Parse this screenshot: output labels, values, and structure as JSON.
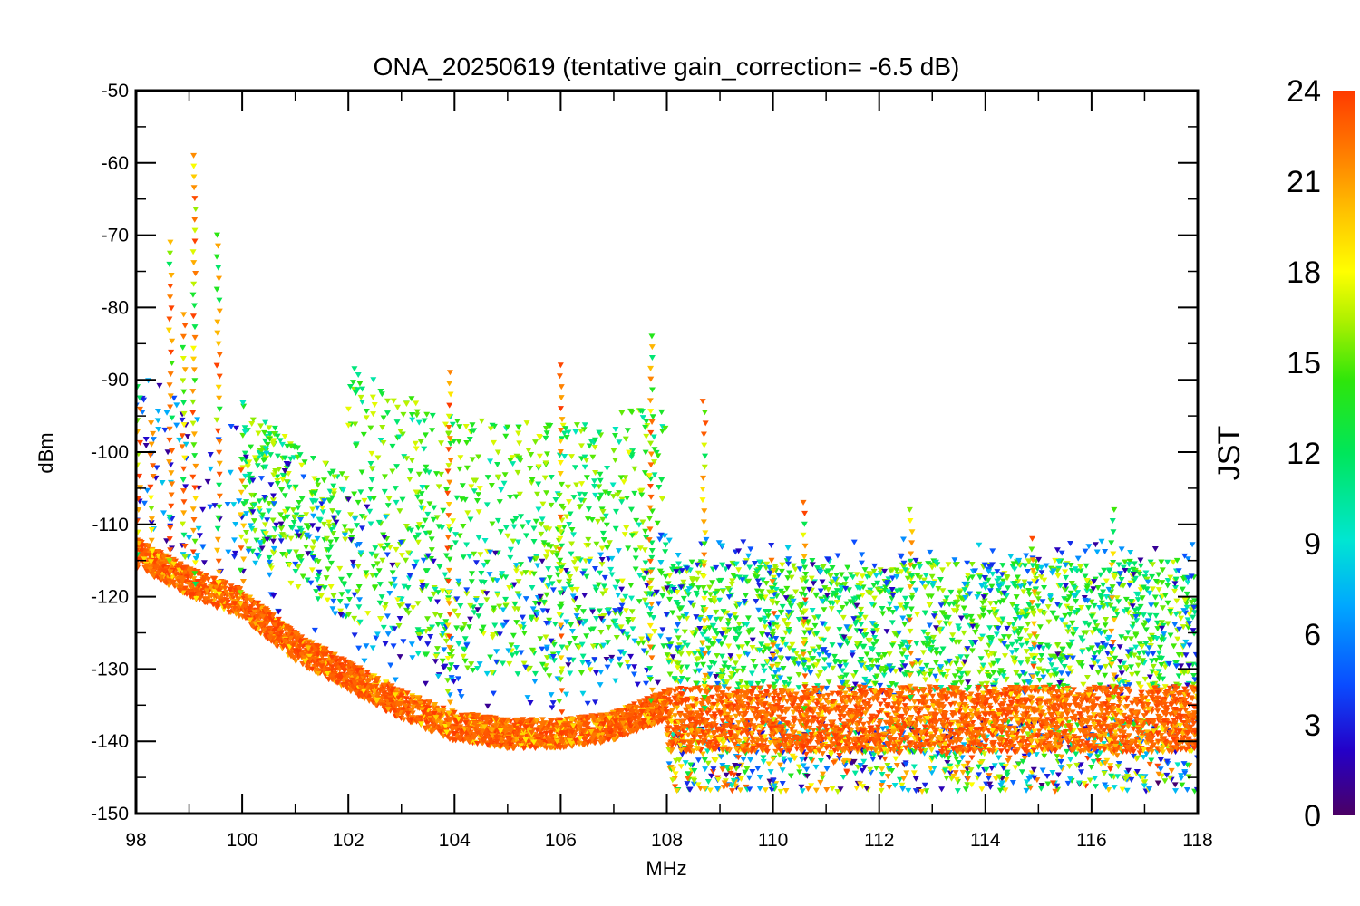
{
  "chart_data": {
    "type": "scatter",
    "title": "ONA_20250619 (tentative gain_correction= -6.5 dB)",
    "xlabel": "MHz",
    "ylabel": "dBm",
    "xlim": [
      98,
      118
    ],
    "ylim": [
      -150,
      -50
    ],
    "xticks": [
      98,
      100,
      102,
      104,
      106,
      108,
      110,
      112,
      114,
      116,
      118
    ],
    "yticks": [
      -50,
      -60,
      -70,
      -80,
      -90,
      -100,
      -110,
      -120,
      -130,
      -140,
      -150
    ],
    "marker": "downward-triangle",
    "grid": false,
    "colorbar": {
      "label": "JST",
      "range": [
        0,
        24
      ],
      "ticks": [
        24,
        21,
        18,
        15,
        12,
        9,
        6,
        3,
        0
      ],
      "colormap": "rainbow",
      "stops": [
        "#4b0064",
        "#2400c8",
        "#0a4cff",
        "#00a8ff",
        "#00e6d2",
        "#00e65a",
        "#2ee60a",
        "#aaf000",
        "#ffff00",
        "#ffc400",
        "#ff8000",
        "#ff3a00"
      ]
    },
    "noise_floor": [
      {
        "x": 98.0,
        "y": -114
      },
      {
        "x": 99.0,
        "y": -118
      },
      {
        "x": 100.0,
        "y": -121
      },
      {
        "x": 101.0,
        "y": -127
      },
      {
        "x": 102.0,
        "y": -131
      },
      {
        "x": 103.0,
        "y": -135
      },
      {
        "x": 104.0,
        "y": -138
      },
      {
        "x": 105.0,
        "y": -139
      },
      {
        "x": 106.0,
        "y": -139
      },
      {
        "x": 107.0,
        "y": -138
      },
      {
        "x": 108.0,
        "y": -135
      },
      {
        "x": 108.01,
        "y": -137
      },
      {
        "x": 118.0,
        "y": -137
      }
    ],
    "peaks": [
      {
        "x": 98.05,
        "y": -91
      },
      {
        "x": 98.3,
        "y": -96
      },
      {
        "x": 98.65,
        "y": -71
      },
      {
        "x": 98.9,
        "y": -81
      },
      {
        "x": 99.1,
        "y": -59
      },
      {
        "x": 99.55,
        "y": -70
      },
      {
        "x": 100.0,
        "y": -101
      },
      {
        "x": 103.9,
        "y": -89
      },
      {
        "x": 106.0,
        "y": -88
      },
      {
        "x": 107.7,
        "y": -84
      },
      {
        "x": 108.7,
        "y": -93
      },
      {
        "x": 110.0,
        "y": -115
      },
      {
        "x": 110.6,
        "y": -107
      },
      {
        "x": 112.6,
        "y": -108
      },
      {
        "x": 114.9,
        "y": -112
      },
      {
        "x": 116.4,
        "y": -108
      }
    ],
    "series_hours": [
      0,
      3,
      6,
      9,
      12,
      15,
      18,
      21,
      24
    ]
  }
}
